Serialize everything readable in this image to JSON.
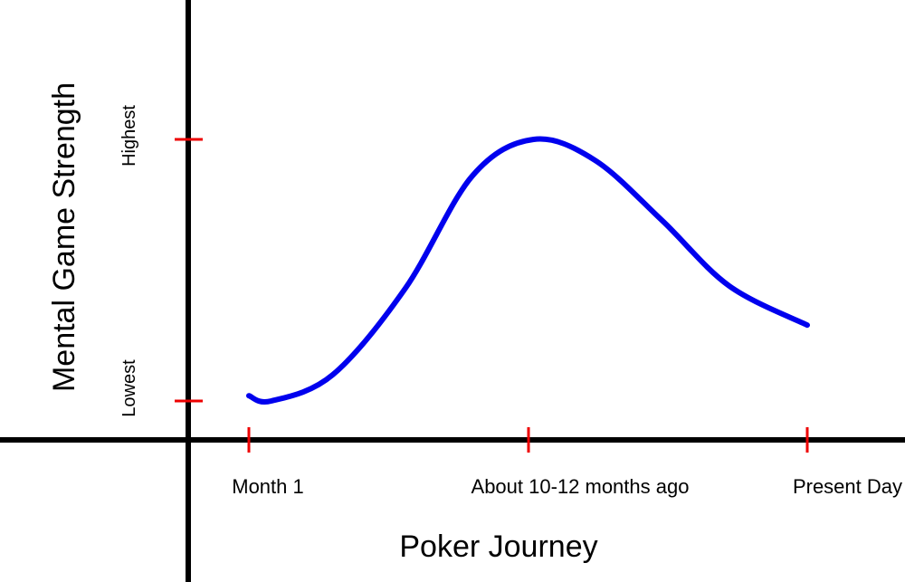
{
  "chart_data": {
    "type": "line",
    "title": "",
    "xlabel": "Poker Journey",
    "ylabel": "Mental Game Strength",
    "x_ticks": [
      "Month 1",
      "About 10-12 months ago",
      "Present Day"
    ],
    "y_ticks": [
      "Lowest",
      "Highest"
    ],
    "ylim": [
      0,
      1
    ],
    "grid": false,
    "legend": "none",
    "series": [
      {
        "points": [
          {
            "x": 0.0,
            "y": 0.02
          },
          {
            "x": 0.04,
            "y": 0.0
          },
          {
            "x": 0.15,
            "y": 0.1
          },
          {
            "x": 0.28,
            "y": 0.43
          },
          {
            "x": 0.4,
            "y": 0.86
          },
          {
            "x": 0.51,
            "y": 1.0
          },
          {
            "x": 0.62,
            "y": 0.92
          },
          {
            "x": 0.74,
            "y": 0.69
          },
          {
            "x": 0.86,
            "y": 0.44
          },
          {
            "x": 1.0,
            "y": 0.29
          }
        ]
      }
    ],
    "colors": {
      "line": "#0000ee",
      "axes": "#000000",
      "ticks": "#ee0000"
    }
  }
}
